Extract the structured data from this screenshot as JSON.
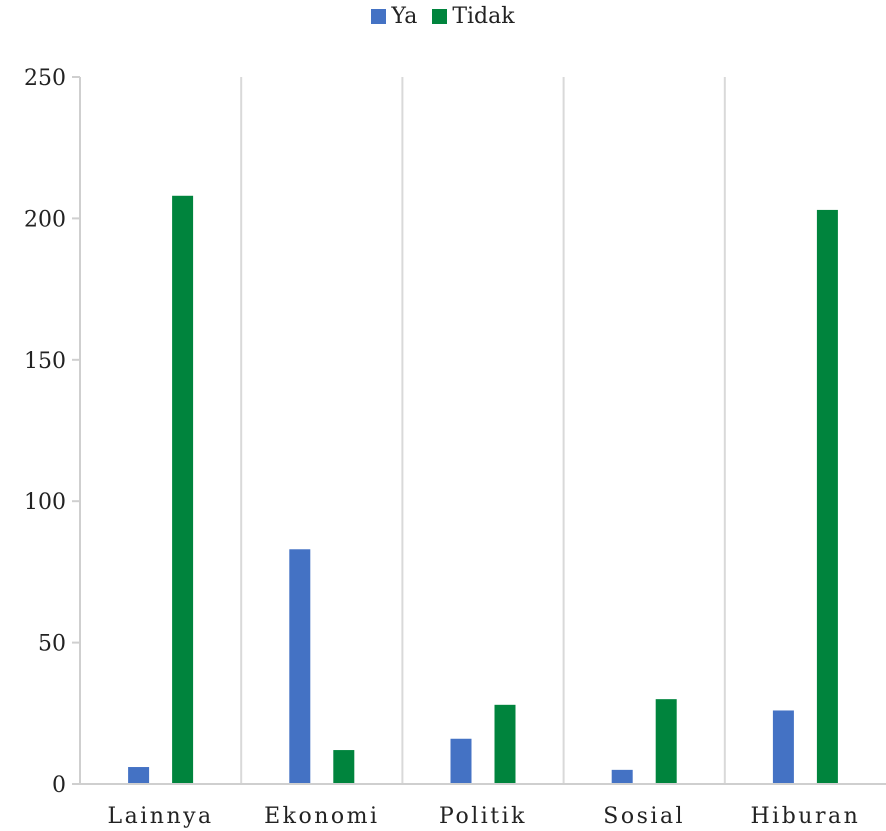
{
  "chart_data": {
    "type": "bar",
    "categories": [
      "Lainnya",
      "Ekonomi",
      "Politik",
      "Sosial",
      "Hiburan"
    ],
    "series": [
      {
        "name": "Ya",
        "color": "#4472C4",
        "values": [
          6,
          83,
          16,
          5,
          26
        ]
      },
      {
        "name": "Tidak",
        "color": "#00843D",
        "values": [
          208,
          12,
          28,
          30,
          203
        ]
      }
    ],
    "ylim": [
      0,
      250
    ],
    "yticks": [
      "0",
      "50",
      "100",
      "150",
      "200",
      "250"
    ],
    "title": "",
    "xlabel": "",
    "ylabel": "",
    "legend": "top-center",
    "grid": "vertical category separators"
  }
}
